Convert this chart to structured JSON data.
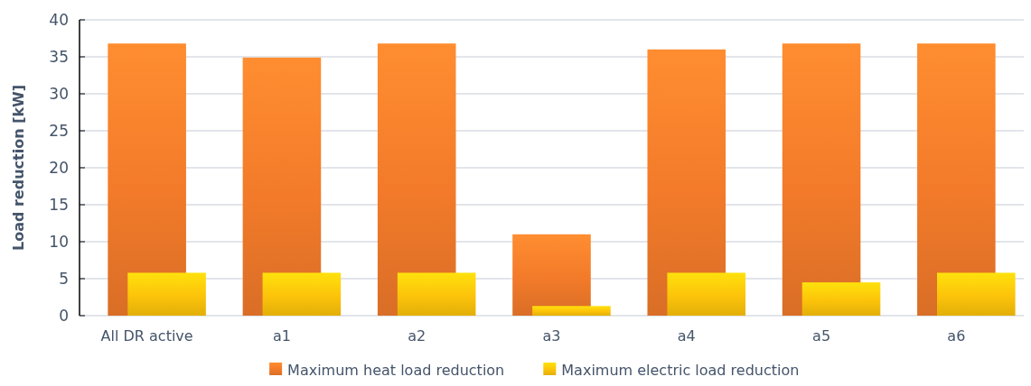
{
  "chart_data": {
    "type": "bar",
    "ylabel": "Load reduction [kW]",
    "categories": [
      "All DR active",
      "a1",
      "a2",
      "a3",
      "a4",
      "a5",
      "a6"
    ],
    "series": [
      {
        "name": "Maximum heat load reduction",
        "color": "#f27a2a",
        "values": [
          36.8,
          34.9,
          36.8,
          11.0,
          36.0,
          36.8,
          36.8
        ]
      },
      {
        "name": "Maximum electric load reduction",
        "color": "#fcc30a",
        "values": [
          5.8,
          5.8,
          5.8,
          1.3,
          5.8,
          4.5,
          5.8
        ]
      }
    ],
    "ylim": [
      0,
      40
    ],
    "yticks": [
      0,
      5,
      10,
      15,
      20,
      25,
      30,
      35,
      40
    ],
    "grid": "y",
    "legend": "bottom"
  }
}
